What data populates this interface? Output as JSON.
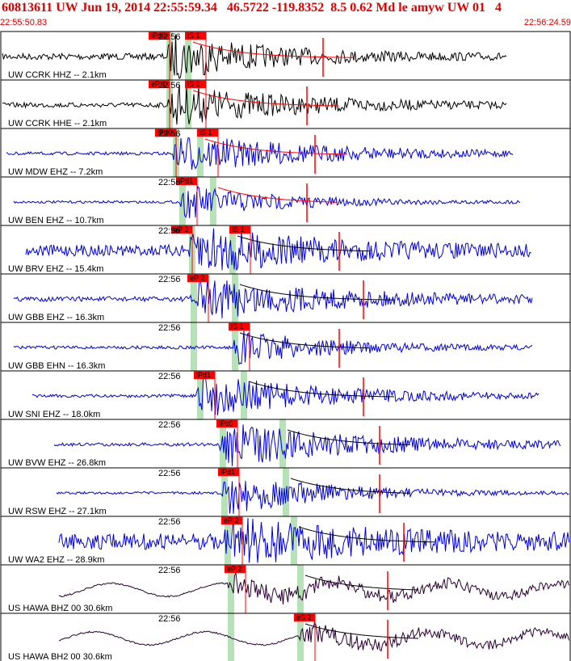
{
  "header": {
    "title": "60813611 UW Jun 19, 2014 22:55:59.34   46.5722 -119.8352  8.5 0.62 Md le amyw UW 01   4",
    "start_time": "22:55:50.83",
    "end_time": "22:56:24.59"
  },
  "colors": {
    "header_text": "#e00000",
    "pick": "#ff0000",
    "window": "#b7e1b7",
    "trace_black": "#000000",
    "trace_blue": "#0000dd",
    "trace_purple": "#2a0033"
  },
  "time_tick_label": "22:56",
  "traces": [
    {
      "station": "UW CCRK HHZ -- 2.1km",
      "color": "black",
      "picks": [
        "iPd0",
        "iS 1"
      ],
      "green": [
        [
          206,
          214
        ],
        [
          229,
          237
        ]
      ],
      "start": 3,
      "end": 628,
      "onset": 206,
      "amp": 4,
      "peak": 28,
      "coda": 400,
      "sw": 229
    },
    {
      "station": "UW CCRK HHE -- 2.1km",
      "color": "black",
      "picks": [
        "eP 1",
        "iS 1"
      ],
      "green": [
        [
          206,
          214
        ],
        [
          229,
          237
        ]
      ],
      "start": 3,
      "end": 628,
      "onset": 206,
      "amp": 3,
      "peak": 26,
      "coda": 380,
      "sw": 229
    },
    {
      "station": "UW MDW EHZ -- 7.2km",
      "color": "blue",
      "picks": [
        "iPd0",
        "iS 1"
      ],
      "green": [
        [
          214,
          222
        ],
        [
          244,
          252
        ]
      ],
      "start": 8,
      "end": 636,
      "onset": 214,
      "amp": 2,
      "peak": 24,
      "coda": 390,
      "sw": 244
    },
    {
      "station": "UW BEN EHZ -- 10.7km",
      "color": "blue",
      "picks": [
        "iPd1"
      ],
      "green": [
        [
          222,
          230
        ],
        [
          260,
          268
        ]
      ],
      "start": 17,
      "end": 645,
      "onset": 222,
      "amp": 1.5,
      "peak": 22,
      "coda": 380,
      "sw": 260
    },
    {
      "station": "UW BRV EHZ -- 15.4km",
      "color": "blue",
      "picks": [
        "eP 2",
        "iS 1"
      ],
      "green": [
        [
          234,
          242
        ],
        [
          284,
          292
        ]
      ],
      "start": 32,
      "end": 658,
      "onset": 234,
      "amp": 7,
      "peak": 28,
      "coda": 420,
      "sw": 284
    },
    {
      "station": "UW GBB EHZ -- 16.3km",
      "color": "blue",
      "picks": [
        "eP 2"
      ],
      "green": [
        [
          236,
          244
        ],
        [
          287,
          295
        ]
      ],
      "start": 17,
      "end": 660,
      "onset": 236,
      "amp": 3,
      "peak": 26,
      "coda": 450,
      "sw": 287
    },
    {
      "station": "UW GBB EHN -- 16.3km",
      "color": "blue",
      "picks": [
        "iS 1"
      ],
      "green": [
        [
          236,
          244
        ],
        [
          287,
          295
        ]
      ],
      "start": 17,
      "end": 660,
      "onset": 287,
      "amp": 2,
      "peak": 22,
      "coda": 420,
      "sw": 287
    },
    {
      "station": "UW SNI EHZ -- 18.0km",
      "color": "blue",
      "picks": [
        "iPd1"
      ],
      "green": [
        [
          244,
          252
        ],
        [
          298,
          306
        ]
      ],
      "start": 40,
      "end": 667,
      "onset": 244,
      "amp": 2,
      "peak": 28,
      "coda": 450,
      "sw": 298
    },
    {
      "station": "UW BVW EHZ -- 26.8km",
      "color": "blue",
      "picks": [
        "iPc0"
      ],
      "green": [
        [
          272,
          280
        ],
        [
          346,
          354
        ]
      ],
      "start": 67,
      "end": 694,
      "onset": 272,
      "amp": 2,
      "peak": 28,
      "coda": 470,
      "sw": 346
    },
    {
      "station": "UW RSW EHZ -- 27.1km",
      "color": "blue",
      "picks": [
        "iPd1"
      ],
      "green": [
        [
          274,
          282
        ],
        [
          350,
          358
        ]
      ],
      "start": 70,
      "end": 705,
      "onset": 274,
      "amp": 1.5,
      "peak": 28,
      "coda": 470,
      "sw": 350
    },
    {
      "station": "UW WA2 EHZ -- 28.9km",
      "color": "blue",
      "picks": [
        "eP 2"
      ],
      "green": [
        [
          278,
          286
        ],
        [
          360,
          368
        ]
      ],
      "start": 73,
      "end": 705,
      "onset": 278,
      "amp": 10,
      "peak": 26,
      "coda": 500,
      "sw": 360
    },
    {
      "station": "US HAWA BHZ 00 30.6km",
      "color": "purple",
      "picks": [
        "eP 2"
      ],
      "green": [
        [
          282,
          290
        ],
        [
          368,
          376
        ]
      ],
      "start": 73,
      "end": 705,
      "onset": 282,
      "amp": 9,
      "peak": 22,
      "coda": 480,
      "sw": 368
    },
    {
      "station": "US HAWA BH2 00 30.6km",
      "color": "purple",
      "picks": [
        "eS 2"
      ],
      "green": [
        [
          282,
          290
        ],
        [
          368,
          376
        ]
      ],
      "start": 73,
      "end": 705,
      "onset": 368,
      "amp": 9,
      "peak": 22,
      "coda": 480,
      "sw": 368
    }
  ]
}
